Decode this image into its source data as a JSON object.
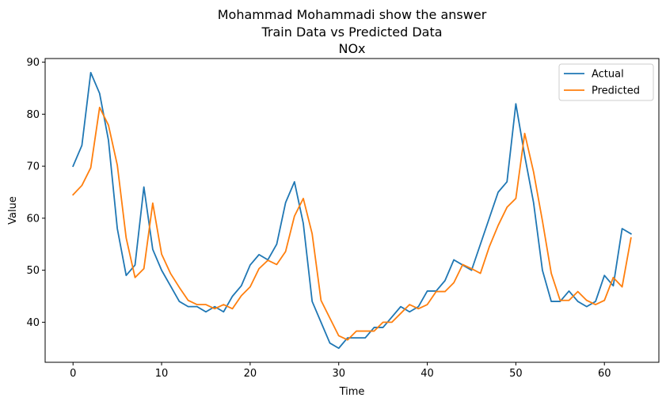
{
  "chart_data": {
    "type": "line",
    "title": [
      "Mohammad Mohammadi show the answer",
      "Train Data vs Predicted Data",
      "NOx"
    ],
    "xlabel": "Time",
    "ylabel": "Value",
    "xlim": [
      -3.15,
      66.15
    ],
    "ylim": [
      32.3,
      90.7
    ],
    "xticks": [
      0,
      10,
      20,
      30,
      40,
      50,
      60
    ],
    "yticks": [
      40,
      50,
      60,
      70,
      80,
      90
    ],
    "grid": false,
    "legend_position": "top-right",
    "x": [
      0,
      1,
      2,
      3,
      4,
      5,
      6,
      7,
      8,
      9,
      10,
      11,
      12,
      13,
      14,
      15,
      16,
      17,
      18,
      19,
      20,
      21,
      22,
      23,
      24,
      25,
      26,
      27,
      28,
      29,
      30,
      31,
      32,
      33,
      34,
      35,
      36,
      37,
      38,
      39,
      40,
      41,
      42,
      43,
      44,
      45,
      46,
      47,
      48,
      49,
      50,
      51,
      52,
      53,
      54,
      55,
      56,
      57,
      58,
      59,
      60,
      61,
      62,
      63
    ],
    "series": [
      {
        "name": "Actual",
        "color": "#1f77b4",
        "values": [
          70,
          74,
          88,
          84,
          75,
          58,
          49,
          51,
          66,
          54,
          50,
          47,
          44,
          43,
          43,
          42,
          43,
          42,
          45,
          47,
          51,
          53,
          52,
          55,
          63,
          67,
          59,
          44,
          40,
          36,
          35,
          37,
          37,
          37,
          39,
          39,
          41,
          43,
          42,
          43,
          46,
          46,
          48,
          52,
          51,
          50,
          55,
          60,
          65,
          67,
          82,
          72,
          63,
          50,
          44,
          44,
          46,
          44,
          43,
          44,
          49,
          47,
          58,
          57
        ]
      },
      {
        "name": "Predicted",
        "color": "#ff7f0e",
        "values": [
          64.5,
          66.3,
          69.7,
          81.3,
          77.9,
          70.2,
          56.2,
          48.6,
          50.3,
          62.9,
          53.1,
          49.4,
          46.7,
          44.2,
          43.4,
          43.4,
          42.6,
          43.4,
          42.6,
          45.1,
          46.8,
          50.3,
          51.9,
          51.1,
          53.6,
          60.4,
          63.8,
          57.0,
          44.2,
          40.8,
          37.4,
          36.6,
          38.3,
          38.3,
          38.3,
          40.0,
          40.0,
          41.7,
          43.4,
          42.6,
          43.4,
          45.9,
          45.9,
          47.6,
          51.1,
          50.3,
          49.4,
          54.5,
          58.6,
          62.1,
          63.8,
          76.3,
          68.9,
          59.5,
          49.4,
          44.2,
          44.2,
          45.9,
          44.2,
          43.4,
          44.2,
          48.6,
          46.8,
          56.2
        ]
      }
    ]
  }
}
